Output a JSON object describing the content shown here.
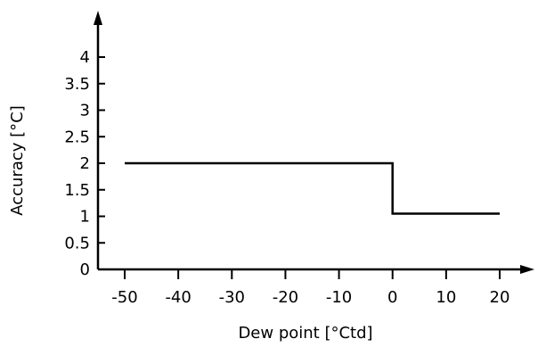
{
  "chart_data": {
    "type": "line",
    "title": "",
    "xlabel": "Dew point [°Ctd]",
    "ylabel": "Accuracy [°C]",
    "xlim": [
      -50,
      20
    ],
    "ylim": [
      0,
      4
    ],
    "grid": false,
    "x_ticks": [
      -50,
      -40,
      -30,
      -20,
      -10,
      0,
      10,
      20
    ],
    "x_tick_labels": [
      "-50",
      "-40",
      "-30",
      "-20",
      "-10",
      "0",
      "10",
      "20"
    ],
    "y_ticks": [
      0,
      0.5,
      1,
      1.5,
      2,
      2.5,
      3,
      3.5,
      4
    ],
    "y_tick_labels": [
      "0",
      "0.5",
      "1",
      "1.5",
      "2",
      "2.5",
      "3",
      "3.5",
      "4"
    ],
    "series": [
      {
        "x": [
          -50,
          0,
          0,
          20
        ],
        "y": [
          2,
          2,
          1.05,
          1.05
        ],
        "color": "#000000"
      }
    ]
  }
}
